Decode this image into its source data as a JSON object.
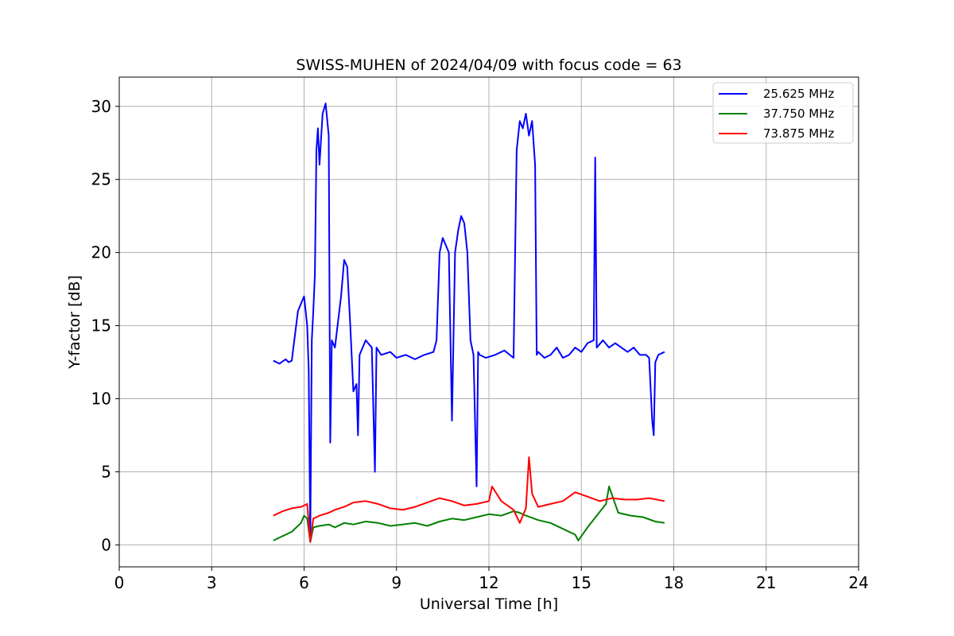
{
  "chart_data": {
    "type": "line",
    "title": "SWISS-MUHEN of 2024/04/09 with focus code = 63",
    "xlabel": "Universal Time [h]",
    "ylabel": "Y-factor [dB]",
    "xlim": [
      0,
      24
    ],
    "ylim": [
      -1.5,
      32
    ],
    "xticks": [
      0,
      3,
      6,
      9,
      12,
      15,
      18,
      21,
      24
    ],
    "yticks": [
      0,
      5,
      10,
      15,
      20,
      25,
      30
    ],
    "grid": true,
    "legend_position": "top-right",
    "series": [
      {
        "name": "25.625 MHz",
        "color": "#0000ff",
        "x": [
          5.0,
          5.2,
          5.4,
          5.5,
          5.6,
          5.8,
          5.9,
          6.0,
          6.1,
          6.15,
          6.2,
          6.25,
          6.3,
          6.35,
          6.4,
          6.45,
          6.5,
          6.6,
          6.7,
          6.8,
          6.85,
          6.9,
          7.0,
          7.2,
          7.3,
          7.4,
          7.5,
          7.6,
          7.7,
          7.75,
          7.8,
          8.0,
          8.2,
          8.3,
          8.35,
          8.5,
          8.8,
          9.0,
          9.3,
          9.6,
          9.9,
          10.2,
          10.3,
          10.4,
          10.5,
          10.6,
          10.7,
          10.8,
          10.9,
          11.0,
          11.1,
          11.2,
          11.3,
          11.4,
          11.5,
          11.6,
          11.65,
          11.7,
          11.9,
          12.2,
          12.5,
          12.8,
          12.9,
          13.0,
          13.1,
          13.2,
          13.3,
          13.4,
          13.5,
          13.55,
          13.6,
          13.8,
          14.0,
          14.2,
          14.4,
          14.6,
          14.8,
          15.0,
          15.2,
          15.4,
          15.45,
          15.5,
          15.7,
          15.9,
          16.1,
          16.3,
          16.5,
          16.7,
          16.9,
          17.1,
          17.2,
          17.3,
          17.35,
          17.4,
          17.5,
          17.7
        ],
        "values": [
          12.6,
          12.4,
          12.7,
          12.5,
          12.6,
          16.0,
          16.5,
          17.0,
          15.0,
          12.0,
          0.5,
          14.0,
          16.0,
          18.5,
          27.0,
          28.5,
          26.0,
          29.5,
          30.2,
          28.0,
          7.0,
          14.0,
          13.5,
          17.0,
          19.5,
          19.0,
          15.0,
          10.5,
          11.0,
          7.5,
          13.0,
          14.0,
          13.5,
          5.0,
          13.5,
          13.0,
          13.2,
          12.8,
          13.0,
          12.7,
          13.0,
          13.2,
          14.0,
          20.0,
          21.0,
          20.5,
          20.0,
          8.5,
          20.0,
          21.5,
          22.5,
          22.0,
          20.0,
          14.0,
          13.0,
          4.0,
          13.2,
          13.0,
          12.8,
          13.0,
          13.3,
          12.8,
          27.0,
          29.0,
          28.5,
          29.5,
          28.0,
          29.0,
          26.0,
          13.0,
          13.2,
          12.8,
          13.0,
          13.5,
          12.8,
          13.0,
          13.5,
          13.2,
          13.8,
          14.0,
          26.5,
          13.5,
          14.0,
          13.5,
          13.8,
          13.5,
          13.2,
          13.5,
          13.0,
          13.0,
          12.8,
          8.5,
          7.5,
          12.5,
          13.0,
          13.2
        ]
      },
      {
        "name": "37.750 MHz",
        "color": "#008000",
        "x": [
          5.0,
          5.3,
          5.6,
          5.9,
          6.0,
          6.1,
          6.2,
          6.3,
          6.5,
          6.8,
          7.0,
          7.3,
          7.6,
          8.0,
          8.4,
          8.8,
          9.2,
          9.6,
          10.0,
          10.4,
          10.8,
          11.2,
          11.6,
          12.0,
          12.4,
          12.8,
          13.0,
          13.2,
          13.6,
          14.0,
          14.4,
          14.8,
          14.9,
          15.2,
          15.5,
          15.8,
          15.9,
          16.2,
          16.6,
          17.0,
          17.4,
          17.7
        ],
        "values": [
          0.3,
          0.6,
          0.9,
          1.5,
          2.0,
          1.8,
          0.2,
          1.2,
          1.3,
          1.4,
          1.2,
          1.5,
          1.4,
          1.6,
          1.5,
          1.3,
          1.4,
          1.5,
          1.3,
          1.6,
          1.8,
          1.7,
          1.9,
          2.1,
          2.0,
          2.3,
          2.2,
          2.0,
          1.7,
          1.5,
          1.1,
          0.7,
          0.3,
          1.2,
          2.0,
          2.8,
          4.0,
          2.2,
          2.0,
          1.9,
          1.6,
          1.5
        ]
      },
      {
        "name": "73.875 MHz",
        "color": "#ff0000",
        "x": [
          5.0,
          5.3,
          5.6,
          5.9,
          6.0,
          6.1,
          6.2,
          6.3,
          6.5,
          6.8,
          7.0,
          7.3,
          7.6,
          8.0,
          8.4,
          8.8,
          9.2,
          9.6,
          10.0,
          10.4,
          10.8,
          11.2,
          11.6,
          12.0,
          12.1,
          12.4,
          12.8,
          13.0,
          13.2,
          13.3,
          13.4,
          13.6,
          14.0,
          14.4,
          14.8,
          15.2,
          15.6,
          16.0,
          16.4,
          16.8,
          17.2,
          17.7
        ],
        "values": [
          2.0,
          2.3,
          2.5,
          2.6,
          2.7,
          2.8,
          0.2,
          1.8,
          2.0,
          2.2,
          2.4,
          2.6,
          2.9,
          3.0,
          2.8,
          2.5,
          2.4,
          2.6,
          2.9,
          3.2,
          3.0,
          2.7,
          2.8,
          3.0,
          4.0,
          3.0,
          2.4,
          1.5,
          2.5,
          6.0,
          3.5,
          2.6,
          2.8,
          3.0,
          3.6,
          3.3,
          3.0,
          3.2,
          3.1,
          3.1,
          3.2,
          3.0
        ]
      }
    ]
  }
}
